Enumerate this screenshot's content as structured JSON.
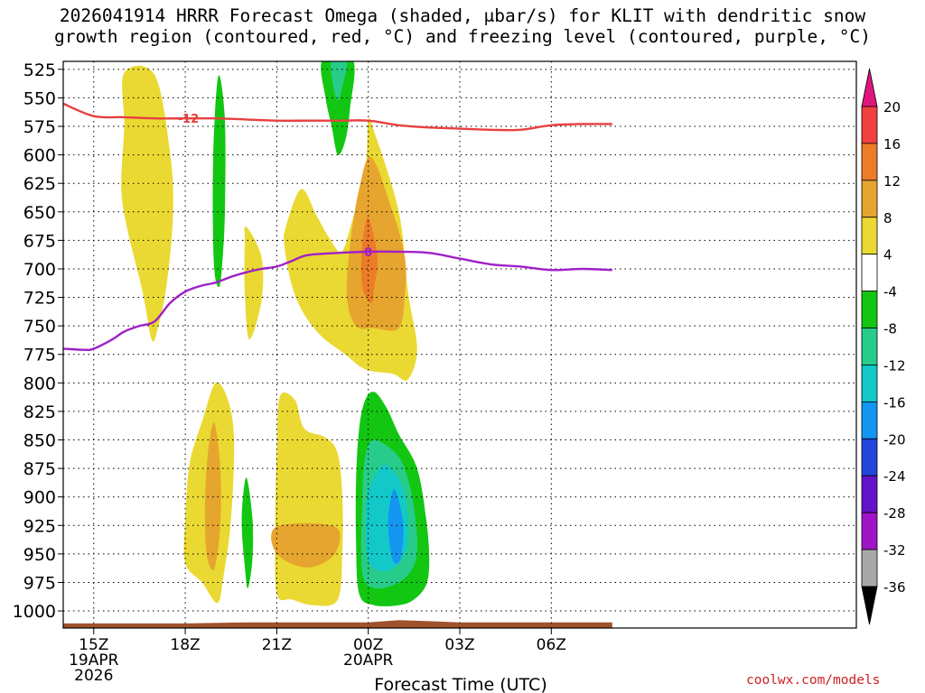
{
  "title_lines": [
    "2026041914 HRRR Forecast Omega (shaded, μbar/s) for KLIT with dendritic snow",
    "growth region (contoured, red, °C) and freezing level (contoured, purple, °C)"
  ],
  "credit": "coolwx.com/models",
  "chart_data": {
    "type": "contour-time-height",
    "title": "2026041914 HRRR Forecast Omega (shaded, μbar/s) for KLIT with dendritic snow growth region (contoured, red, °C) and freezing level (contoured, purple, °C)",
    "xlabel": "Forecast Time (UTC)",
    "ylabel": "",
    "x_unit": "hours after 2026-04-19 14Z",
    "xlim": [
      14,
      40
    ],
    "ylim": [
      1015,
      518
    ],
    "y_ticks": [
      525,
      550,
      575,
      600,
      625,
      650,
      675,
      700,
      725,
      750,
      775,
      800,
      825,
      850,
      875,
      900,
      925,
      950,
      975,
      1000
    ],
    "x_ticks": [
      {
        "x": 15,
        "label": "15Z",
        "sub1": "19APR",
        "sub2": "2026"
      },
      {
        "x": 18,
        "label": "18Z",
        "sub1": "",
        "sub2": ""
      },
      {
        "x": 21,
        "label": "21Z",
        "sub1": "",
        "sub2": ""
      },
      {
        "x": 24,
        "label": "00Z",
        "sub1": "20APR",
        "sub2": ""
      },
      {
        "x": 27,
        "label": "03Z",
        "sub1": "",
        "sub2": ""
      },
      {
        "x": 30,
        "label": "06Z",
        "sub1": "",
        "sub2": ""
      }
    ],
    "grid": true,
    "colorbar": {
      "labels": [
        "20",
        "16",
        "12",
        "8",
        "4",
        "-4",
        "-8",
        "-12",
        "-16",
        "-20",
        "-24",
        "-28",
        "-32",
        "-36"
      ],
      "bins": [
        {
          "lo": 16,
          "hi": 20,
          "color": "#f04040"
        },
        {
          "lo": 12,
          "hi": 16,
          "color": "#ec7c28"
        },
        {
          "lo": 8,
          "hi": 12,
          "color": "#e6a52e"
        },
        {
          "lo": 4,
          "hi": 8,
          "color": "#ead932"
        },
        {
          "lo": -4,
          "hi": 4,
          "color": "#ffffff"
        },
        {
          "lo": -8,
          "hi": -4,
          "color": "#12c612"
        },
        {
          "lo": -12,
          "hi": -8,
          "color": "#28cc8a"
        },
        {
          "lo": -16,
          "hi": -12,
          "color": "#12c8c8"
        },
        {
          "lo": -20,
          "hi": -16,
          "color": "#1496f0"
        },
        {
          "lo": -24,
          "hi": -20,
          "color": "#2046dc"
        },
        {
          "lo": -28,
          "hi": -24,
          "color": "#6414c8"
        },
        {
          "lo": -32,
          "hi": -28,
          "color": "#a014c8"
        },
        {
          "lo": -36,
          "hi": -32,
          "color": "#a8a8a8"
        }
      ],
      "over_color": "#e0157e",
      "under_color": "#000000"
    },
    "shaded_regions": [
      {
        "value": 4,
        "color": "#ead932",
        "points": [
          [
            16,
            528
          ],
          [
            17,
            530
          ],
          [
            17.5,
            598
          ],
          [
            17.6,
            650
          ],
          [
            17.4,
            712
          ],
          [
            17.1,
            752
          ],
          [
            16.9,
            762
          ],
          [
            16.6,
            720
          ],
          [
            16.1,
            665
          ],
          [
            15.9,
            628
          ],
          [
            16.0,
            575
          ]
        ]
      },
      {
        "value": -4,
        "color": "#12c612",
        "points": [
          [
            19.1,
            530
          ],
          [
            19.3,
            570
          ],
          [
            19.3,
            650
          ],
          [
            19.2,
            700
          ],
          [
            19.1,
            716
          ],
          [
            18.95,
            700
          ],
          [
            18.9,
            640
          ],
          [
            18.95,
            575
          ]
        ]
      },
      {
        "value": 4,
        "color": "#ead932",
        "points": [
          [
            20,
            663
          ],
          [
            20.5,
            690
          ],
          [
            20.5,
            728
          ],
          [
            20.1,
            762
          ],
          [
            19.95,
            720
          ],
          [
            19.95,
            678
          ]
        ]
      },
      {
        "value": 4,
        "color": "#ead932",
        "points": [
          [
            21.3,
            663
          ],
          [
            21.8,
            630
          ],
          [
            22.3,
            653
          ],
          [
            22.7,
            672
          ],
          [
            23.1,
            685
          ],
          [
            23.4,
            665
          ],
          [
            23.9,
            612
          ],
          [
            24.0,
            570
          ],
          [
            24.2,
            580
          ],
          [
            25.0,
            650
          ],
          [
            25.3,
            720
          ],
          [
            25.6,
            770
          ],
          [
            25.3,
            797
          ],
          [
            24.8,
            792
          ],
          [
            23.9,
            788
          ],
          [
            23.2,
            774
          ],
          [
            22.5,
            760
          ],
          [
            21.9,
            740
          ],
          [
            21.5,
            715
          ],
          [
            21.25,
            680
          ]
        ]
      },
      {
        "value": 8,
        "color": "#e6a52e",
        "points": [
          [
            24.1,
            602
          ],
          [
            24.8,
            650
          ],
          [
            25.2,
            690
          ],
          [
            25.2,
            722
          ],
          [
            25.0,
            752
          ],
          [
            24.2,
            752
          ],
          [
            23.6,
            750
          ],
          [
            23.3,
            725
          ],
          [
            23.4,
            680
          ],
          [
            23.7,
            630
          ]
        ]
      },
      {
        "value": 12,
        "color": "#ec7c28",
        "points": [
          [
            24.0,
            655
          ],
          [
            24.3,
            690
          ],
          [
            24.2,
            715
          ],
          [
            24.1,
            730
          ],
          [
            23.8,
            715
          ],
          [
            23.8,
            680
          ]
        ]
      },
      {
        "value": -4,
        "color": "#12c612",
        "points": [
          [
            22.5,
            517
          ],
          [
            23.5,
            517
          ],
          [
            23.4,
            560
          ],
          [
            23.25,
            587
          ],
          [
            23.0,
            600
          ],
          [
            22.8,
            575
          ],
          [
            22.6,
            550
          ]
        ]
      },
      {
        "value": -8,
        "color": "#28cc8a",
        "points": [
          [
            22.8,
            517
          ],
          [
            23.3,
            517
          ],
          [
            23.15,
            540
          ],
          [
            23.0,
            552
          ],
          [
            22.85,
            540
          ]
        ]
      },
      {
        "value": 4,
        "color": "#ead932",
        "points": [
          [
            18.6,
            830
          ],
          [
            19.0,
            800
          ],
          [
            19.4,
            815
          ],
          [
            19.6,
            850
          ],
          [
            19.5,
            920
          ],
          [
            19.25,
            970
          ],
          [
            19.05,
            993
          ],
          [
            18.55,
            975
          ],
          [
            18.0,
            958
          ],
          [
            18.0,
            920
          ],
          [
            18.15,
            870
          ]
        ]
      },
      {
        "value": 8,
        "color": "#e6a52e",
        "points": [
          [
            18.95,
            835
          ],
          [
            19.15,
            875
          ],
          [
            19.15,
            925
          ],
          [
            18.95,
            963
          ],
          [
            18.7,
            950
          ],
          [
            18.65,
            905
          ],
          [
            18.75,
            860
          ]
        ]
      },
      {
        "value": -4,
        "color": "#12c612",
        "points": [
          [
            20.0,
            883
          ],
          [
            20.2,
            918
          ],
          [
            20.2,
            955
          ],
          [
            20.05,
            980
          ],
          [
            19.95,
            960
          ],
          [
            19.85,
            920
          ]
        ]
      },
      {
        "value": 4,
        "color": "#ead932",
        "points": [
          [
            21.1,
            812
          ],
          [
            21.6,
            815
          ],
          [
            21.9,
            840
          ],
          [
            22.6,
            848
          ],
          [
            23.0,
            862
          ],
          [
            23.15,
            900
          ],
          [
            23.15,
            945
          ],
          [
            23.0,
            990
          ],
          [
            22.2,
            995
          ],
          [
            21.5,
            990
          ],
          [
            21.0,
            985
          ],
          [
            20.95,
            930
          ],
          [
            21.0,
            860
          ]
        ]
      },
      {
        "value": 8,
        "color": "#e6a52e",
        "points": [
          [
            21.0,
            926
          ],
          [
            22.9,
            926
          ],
          [
            22.9,
            950
          ],
          [
            22.0,
            962
          ],
          [
            21.0,
            950
          ]
        ]
      },
      {
        "value": -4,
        "color": "#12c612",
        "points": [
          [
            24.2,
            808
          ],
          [
            24.6,
            822
          ],
          [
            25.0,
            845
          ],
          [
            25.6,
            875
          ],
          [
            25.9,
            920
          ],
          [
            26.0,
            955
          ],
          [
            25.9,
            977
          ],
          [
            25.5,
            990
          ],
          [
            25.0,
            995
          ],
          [
            24.2,
            995
          ],
          [
            23.7,
            985
          ],
          [
            23.6,
            940
          ],
          [
            23.6,
            885
          ],
          [
            23.7,
            840
          ],
          [
            23.9,
            815
          ]
        ]
      },
      {
        "value": -8,
        "color": "#28cc8a",
        "points": [
          [
            24.2,
            850
          ],
          [
            25.0,
            865
          ],
          [
            25.4,
            895
          ],
          [
            25.6,
            935
          ],
          [
            25.5,
            960
          ],
          [
            25.0,
            975
          ],
          [
            24.2,
            980
          ],
          [
            23.8,
            965
          ],
          [
            23.8,
            905
          ],
          [
            23.9,
            865
          ]
        ]
      },
      {
        "value": -12,
        "color": "#12c8c8",
        "points": [
          [
            24.6,
            872
          ],
          [
            25.1,
            890
          ],
          [
            25.3,
            920
          ],
          [
            25.2,
            950
          ],
          [
            24.6,
            965
          ],
          [
            24.0,
            955
          ],
          [
            23.95,
            905
          ],
          [
            24.2,
            882
          ]
        ]
      },
      {
        "value": -16,
        "color": "#1496f0",
        "points": [
          [
            24.9,
            895
          ],
          [
            25.15,
            925
          ],
          [
            25.05,
            955
          ],
          [
            24.8,
            955
          ],
          [
            24.65,
            925
          ],
          [
            24.75,
            900
          ]
        ]
      }
    ],
    "contours": [
      {
        "label": "-12",
        "color": "#e84040",
        "label_x": 18.1,
        "points": [
          [
            14,
            555
          ],
          [
            15,
            566
          ],
          [
            16,
            567
          ],
          [
            17,
            568
          ],
          [
            18,
            568
          ],
          [
            19,
            568
          ],
          [
            20,
            569
          ],
          [
            21,
            570
          ],
          [
            22,
            570
          ],
          [
            23,
            570
          ],
          [
            24,
            570
          ],
          [
            25,
            574
          ],
          [
            26,
            576
          ],
          [
            27,
            577
          ],
          [
            28,
            578
          ],
          [
            29,
            578
          ],
          [
            30,
            574
          ],
          [
            31,
            573
          ],
          [
            32,
            573
          ]
        ]
      },
      {
        "label": "0",
        "color": "#a020c8",
        "label_x": 24.0,
        "points": [
          [
            14,
            770
          ],
          [
            14.7,
            771
          ],
          [
            15.0,
            770
          ],
          [
            15.6,
            762
          ],
          [
            16.0,
            755
          ],
          [
            16.5,
            750
          ],
          [
            17.0,
            746
          ],
          [
            17.5,
            730
          ],
          [
            18.0,
            720
          ],
          [
            18.5,
            715
          ],
          [
            19.0,
            712
          ],
          [
            19.5,
            707
          ],
          [
            20.0,
            703
          ],
          [
            20.5,
            700
          ],
          [
            21.0,
            698
          ],
          [
            21.5,
            693
          ],
          [
            22.0,
            688
          ],
          [
            23.0,
            686
          ],
          [
            24.0,
            685
          ],
          [
            25.0,
            685
          ],
          [
            26.0,
            686
          ],
          [
            27.0,
            691
          ],
          [
            28.0,
            696
          ],
          [
            29.0,
            698
          ],
          [
            30.0,
            701
          ],
          [
            31.0,
            700
          ],
          [
            32.0,
            701
          ]
        ]
      }
    ],
    "terrain": {
      "color": "#a0522d",
      "base_pressure": 1015,
      "points": [
        [
          14,
          1011
        ],
        [
          18,
          1011
        ],
        [
          20,
          1010
        ],
        [
          24,
          1010
        ],
        [
          25,
          1008
        ],
        [
          26,
          1009
        ],
        [
          27,
          1010
        ],
        [
          32,
          1010
        ]
      ]
    }
  }
}
